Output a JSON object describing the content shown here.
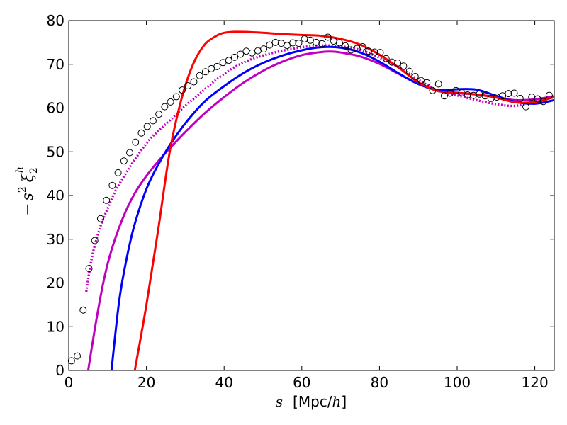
{
  "chart_data": {
    "type": "line",
    "title": "",
    "xlabel": {
      "symbol": "s",
      "unit_open": "[Mpc/",
      "unit_h": "h",
      "unit_close": "]"
    },
    "ylabel": {
      "minus": "−",
      "s": "s",
      "s_exp": "2",
      "xi": "ξ",
      "xi_sup": "h",
      "xi_sub": "2"
    },
    "xlim": [
      0,
      125
    ],
    "ylim": [
      0,
      80
    ],
    "xticks": [
      0,
      20,
      40,
      60,
      80,
      100,
      120
    ],
    "yticks": [
      0,
      10,
      20,
      30,
      40,
      50,
      60,
      70,
      80
    ],
    "grid": false,
    "series": [
      {
        "name": "red model",
        "style": "solid",
        "color": "#ff0000",
        "x": [
          17,
          20,
          23,
          26,
          29,
          32,
          35,
          38,
          40,
          42,
          45,
          50,
          55,
          60,
          65,
          70,
          75,
          80,
          85,
          90,
          95,
          100,
          105,
          110,
          115,
          120,
          125
        ],
        "y": [
          0,
          15,
          32,
          50,
          62,
          70,
          74.5,
          76.5,
          77.2,
          77.4,
          77.4,
          77.2,
          76.9,
          76.7,
          76.5,
          75.8,
          74.5,
          72.2,
          69.2,
          65.9,
          63.9,
          63.5,
          63.1,
          62.4,
          61.3,
          61.4,
          62.5
        ]
      },
      {
        "name": "blue model",
        "style": "solid",
        "color": "#0000ff",
        "x": [
          11,
          13,
          15,
          17,
          20,
          23,
          26,
          30,
          35,
          40,
          45,
          50,
          55,
          60,
          65,
          70,
          75,
          80,
          85,
          90,
          95,
          100,
          105,
          110,
          115,
          120,
          125
        ],
        "y": [
          0,
          16,
          26,
          33.5,
          41.5,
          47,
          51.5,
          56.5,
          61.5,
          65,
          68,
          70.3,
          72,
          73.2,
          73.9,
          73.8,
          72.7,
          70.6,
          67.9,
          65.5,
          64.1,
          64.3,
          64.2,
          62.8,
          61.4,
          61,
          61.8
        ]
      },
      {
        "name": "magenta model",
        "style": "solid",
        "color": "#bf00bf",
        "x": [
          5,
          7,
          9,
          11,
          14,
          17,
          20,
          23,
          26,
          30,
          35,
          40,
          45,
          50,
          55,
          60,
          65,
          68,
          70,
          75,
          80,
          85,
          90,
          95,
          100,
          105,
          110,
          115,
          120,
          125
        ],
        "y": [
          0,
          11,
          20.5,
          27.5,
          35,
          40.5,
          44.5,
          47.8,
          50.8,
          54.5,
          58.8,
          62.5,
          65.8,
          68.5,
          70.6,
          72.1,
          72.8,
          72.9,
          72.7,
          71.8,
          70.1,
          67.8,
          65.5,
          64,
          63.4,
          63.1,
          62.5,
          61.8,
          62,
          62.7
        ]
      },
      {
        "name": "magenta dotted",
        "style": "dotted",
        "color": "#bf00bf",
        "x": [
          4.5,
          6,
          8,
          10,
          12,
          15,
          18,
          21,
          24,
          27,
          30,
          34,
          38,
          42,
          46,
          50,
          55,
          60,
          65,
          70,
          75,
          80,
          85,
          90,
          95,
          100,
          105,
          110,
          115,
          120,
          125
        ],
        "y": [
          18,
          26,
          32.5,
          37,
          41,
          45.5,
          49.5,
          53,
          55.5,
          58,
          60.5,
          63.5,
          66.5,
          69,
          70.8,
          72,
          73.1,
          73.9,
          74.3,
          74.1,
          73.3,
          71.5,
          69.3,
          66.5,
          64,
          62.9,
          61.8,
          60.9,
          60.5,
          61.5,
          62.5
        ]
      }
    ],
    "points": {
      "name": "data",
      "marker": "open circle",
      "x": [
        0.7,
        2.2,
        3.7,
        5.2,
        6.7,
        8.2,
        9.7,
        11.2,
        12.7,
        14.2,
        15.7,
        17.2,
        18.7,
        20.2,
        21.7,
        23.2,
        24.7,
        26.2,
        27.7,
        29.2,
        30.7,
        32.2,
        33.7,
        35.2,
        36.7,
        38.2,
        39.7,
        41.2,
        42.7,
        44.2,
        45.7,
        47.2,
        48.7,
        50.2,
        51.7,
        53.2,
        54.7,
        56.2,
        57.7,
        59.2,
        60.7,
        62.2,
        63.7,
        65.2,
        66.7,
        68.2,
        69.7,
        71.2,
        72.7,
        74.2,
        75.7,
        77.2,
        78.7,
        80.2,
        81.7,
        83.2,
        84.7,
        86.2,
        87.7,
        89.2,
        90.7,
        92.2,
        93.7,
        95.2,
        96.7,
        98.2,
        99.7,
        101.2,
        102.7,
        104.2,
        105.7,
        107.2,
        108.7,
        110.2,
        111.7,
        113.2,
        114.7,
        116.2,
        117.7,
        119.2,
        120.7,
        122.2,
        123.7
      ],
      "y": [
        2.2,
        3.3,
        13.8,
        23.3,
        29.7,
        34.7,
        38.9,
        42.3,
        45.2,
        47.9,
        49.8,
        52.2,
        54.3,
        55.8,
        57.1,
        58.6,
        60.3,
        61.4,
        62.6,
        64.1,
        65.1,
        66.0,
        67.4,
        68.3,
        69.0,
        69.5,
        70.4,
        70.9,
        71.6,
        72.3,
        73.0,
        72.6,
        73.1,
        73.5,
        74.4,
        75.0,
        74.8,
        74.3,
        74.9,
        74.8,
        75.8,
        75.5,
        75.0,
        74.7,
        76.2,
        75.3,
        74.9,
        74.2,
        73.3,
        73.6,
        74.0,
        73.0,
        72.8,
        72.7,
        71.3,
        70.5,
        70.3,
        69.6,
        68.4,
        67.2,
        66.3,
        65.8,
        64.0,
        65.5,
        62.8,
        63.4,
        64.0,
        63.5,
        63.0,
        62.9,
        63.2,
        62.8,
        62.2,
        62.5,
        62.8,
        63.3,
        63.4,
        62.2,
        60.3,
        62.5,
        62.1,
        61.5,
        62.9
      ]
    }
  }
}
